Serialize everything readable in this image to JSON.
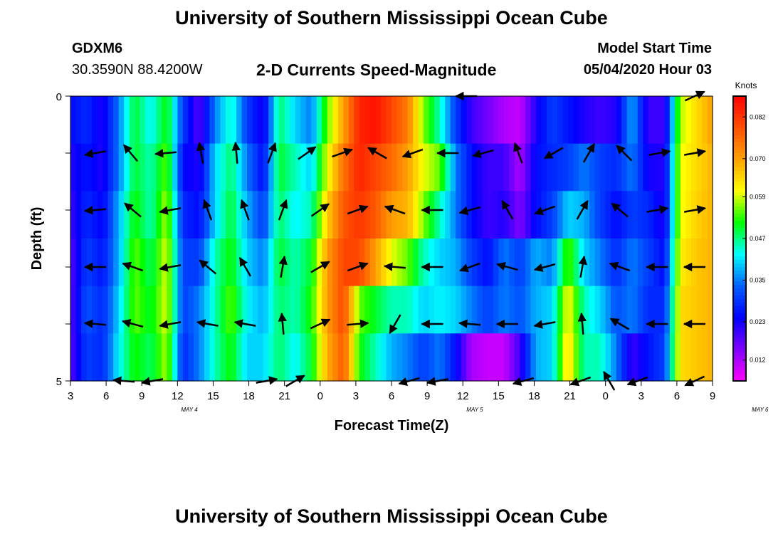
{
  "header": {
    "title": "University of Southern Mississippi Ocean Cube",
    "station": "GDXM6",
    "coords": "30.3590N 88.4200W",
    "plot_title": "2-D Currents Speed-Magnitude",
    "model_label": "Model Start Time",
    "model_time": "05/04/2020 Hour 03"
  },
  "footer": {
    "title": "University of Southern Mississippi Ocean Cube"
  },
  "chart_data": {
    "type": "heatmap",
    "title": "2-D Currents Speed-Magnitude",
    "xlabel": "Forecast Time(Z)",
    "ylabel": "Depth (ft)",
    "x_tick_labels": [
      "3",
      "6",
      "9",
      "12",
      "15",
      "18",
      "21",
      "0",
      "3",
      "6",
      "9",
      "12",
      "15",
      "18",
      "21",
      "0",
      "3",
      "6",
      "9"
    ],
    "day_labels": [
      {
        "text": "MAY 4",
        "at_hour": 13
      },
      {
        "text": "MAY 5",
        "at_hour": 37
      },
      {
        "text": "MAY 6",
        "at_hour": 61
      }
    ],
    "x_range_hours": [
      3,
      57
    ],
    "y_tick_labels": [
      {
        "value": 0,
        "text": "0"
      },
      {
        "value": 5,
        "text": "5"
      }
    ],
    "y_range": [
      0,
      5
    ],
    "colorbar": {
      "title": "Knots",
      "range": [
        0.006,
        0.088
      ],
      "ticks": [
        "0.082",
        "0.070",
        "0.059",
        "0.047",
        "0.035",
        "0.023",
        "0.012"
      ],
      "tick_values": [
        0.082,
        0.07,
        0.059,
        0.047,
        0.035,
        0.023,
        0.012
      ],
      "colors": [
        "#ff00ff",
        "#8000ff",
        "#0000ff",
        "#0060ff",
        "#00ffff",
        "#00ff00",
        "#ffff00",
        "#ffa000",
        "#ff5000",
        "#ff0000"
      ]
    },
    "depth_levels": [
      0.25,
      1.0,
      2.0,
      3.0,
      4.0,
      4.75
    ],
    "speed_matrix": [
      [
        0.025,
        0.028,
        0.022,
        0.035,
        0.05,
        0.042,
        0.052,
        0.03,
        0.018,
        0.035,
        0.045,
        0.03,
        0.022,
        0.048,
        0.04,
        0.035,
        0.055,
        0.07,
        0.084,
        0.086,
        0.08,
        0.074,
        0.056,
        0.045,
        0.03,
        0.02,
        0.016,
        0.012,
        0.01,
        0.022,
        0.03,
        0.026,
        0.022,
        0.02,
        0.022,
        0.038,
        0.02,
        0.02,
        0.058,
        0.064,
        0.07
      ],
      [
        0.022,
        0.026,
        0.022,
        0.035,
        0.05,
        0.045,
        0.055,
        0.025,
        0.022,
        0.04,
        0.048,
        0.035,
        0.025,
        0.05,
        0.045,
        0.04,
        0.06,
        0.075,
        0.084,
        0.08,
        0.076,
        0.07,
        0.06,
        0.055,
        0.035,
        0.025,
        0.02,
        0.02,
        0.012,
        0.025,
        0.028,
        0.03,
        0.035,
        0.03,
        0.028,
        0.035,
        0.023,
        0.022,
        0.06,
        0.064,
        0.068
      ],
      [
        0.02,
        0.028,
        0.024,
        0.038,
        0.052,
        0.045,
        0.058,
        0.028,
        0.025,
        0.04,
        0.05,
        0.038,
        0.03,
        0.048,
        0.042,
        0.045,
        0.065,
        0.078,
        0.082,
        0.078,
        0.07,
        0.068,
        0.056,
        0.045,
        0.035,
        0.025,
        0.02,
        0.022,
        0.015,
        0.025,
        0.03,
        0.04,
        0.038,
        0.03,
        0.025,
        0.03,
        0.028,
        0.022,
        0.06,
        0.065,
        0.068
      ],
      [
        0.018,
        0.03,
        0.026,
        0.038,
        0.055,
        0.048,
        0.06,
        0.03,
        0.03,
        0.045,
        0.052,
        0.04,
        0.035,
        0.05,
        0.045,
        0.05,
        0.07,
        0.08,
        0.08,
        0.07,
        0.06,
        0.055,
        0.045,
        0.04,
        0.038,
        0.03,
        0.025,
        0.035,
        0.03,
        0.038,
        0.035,
        0.055,
        0.04,
        0.035,
        0.028,
        0.035,
        0.03,
        0.025,
        0.062,
        0.066,
        0.068
      ],
      [
        0.018,
        0.032,
        0.028,
        0.04,
        0.055,
        0.05,
        0.06,
        0.03,
        0.035,
        0.045,
        0.055,
        0.042,
        0.038,
        0.048,
        0.045,
        0.052,
        0.07,
        0.08,
        0.055,
        0.05,
        0.045,
        0.045,
        0.04,
        0.042,
        0.04,
        0.035,
        0.03,
        0.035,
        0.032,
        0.038,
        0.04,
        0.062,
        0.045,
        0.04,
        0.032,
        0.035,
        0.028,
        0.028,
        0.064,
        0.066,
        0.068
      ],
      [
        0.018,
        0.03,
        0.028,
        0.042,
        0.052,
        0.048,
        0.058,
        0.028,
        0.035,
        0.045,
        0.052,
        0.04,
        0.04,
        0.048,
        0.042,
        0.05,
        0.068,
        0.078,
        0.052,
        0.045,
        0.038,
        0.035,
        0.03,
        0.035,
        0.025,
        0.012,
        0.01,
        0.01,
        0.02,
        0.038,
        0.04,
        0.065,
        0.045,
        0.045,
        0.035,
        0.02,
        0.026,
        0.03,
        0.064,
        0.066,
        0.068
      ]
    ],
    "vector_angles_deg": [
      [
        null,
        null,
        null,
        null,
        null,
        null,
        null,
        null,
        null,
        null,
        null,
        null,
        null,
        180,
        null,
        null,
        null,
        null,
        null,
        null,
        null,
        25
      ],
      [
        190,
        130,
        185,
        100,
        95,
        70,
        35,
        20,
        150,
        200,
        180,
        195,
        110,
        210,
        60,
        135,
        10,
        10
      ],
      [
        185,
        140,
        190,
        110,
        110,
        70,
        35,
        20,
        160,
        180,
        195,
        120,
        200,
        60,
        140,
        10,
        10
      ],
      [
        180,
        160,
        190,
        140,
        120,
        80,
        30,
        20,
        175,
        180,
        200,
        165,
        195,
        80,
        160,
        180,
        180
      ],
      [
        175,
        165,
        190,
        170,
        170,
        95,
        25,
        5,
        240,
        180,
        175,
        180,
        190,
        95,
        150,
        180,
        180
      ],
      [
        null,
        175,
        190,
        null,
        null,
        null,
        10,
        30,
        null,
        null,
        null,
        195,
        190,
        null,
        null,
        195,
        null,
        200,
        120,
        200,
        null,
        205
      ]
    ]
  }
}
